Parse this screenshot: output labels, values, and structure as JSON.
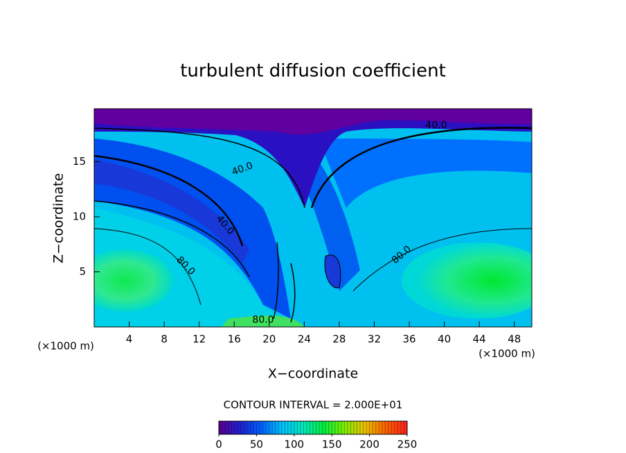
{
  "chart_data": {
    "type": "contour",
    "title": "turbulent diffusion coefficient",
    "xlabel": "X−coordinate",
    "ylabel": "Z−coordinate",
    "xunit": "(×1000 m)",
    "yunit": "(×1000 m)",
    "xlim": [
      0,
      50
    ],
    "ylim": [
      0,
      19.8
    ],
    "xticks": [
      4,
      8,
      12,
      16,
      20,
      24,
      28,
      32,
      36,
      40,
      44,
      48
    ],
    "yticks": [
      5,
      10,
      15
    ],
    "contour_labels": [
      {
        "value": 40,
        "label": "40.0"
      },
      {
        "value": 40,
        "label": "40.0"
      },
      {
        "value": 40,
        "label": "40.0"
      },
      {
        "value": 80,
        "label": "80.0"
      },
      {
        "value": 80,
        "label": "80.0"
      },
      {
        "value": 80,
        "label": "80.0"
      }
    ],
    "contour_interval": "CONTOUR INTERVAL = 2.000E+01",
    "colorbar_lim": [
      0,
      250
    ],
    "colorbar_ticks": [
      0,
      50,
      100,
      150,
      200,
      250
    ],
    "colormap": [
      "#5a0090",
      "#2020d0",
      "#0060ff",
      "#00c0ff",
      "#00e8c0",
      "#00f040",
      "#80f000",
      "#f0c000",
      "#ff6000",
      "#ff2020"
    ]
  }
}
